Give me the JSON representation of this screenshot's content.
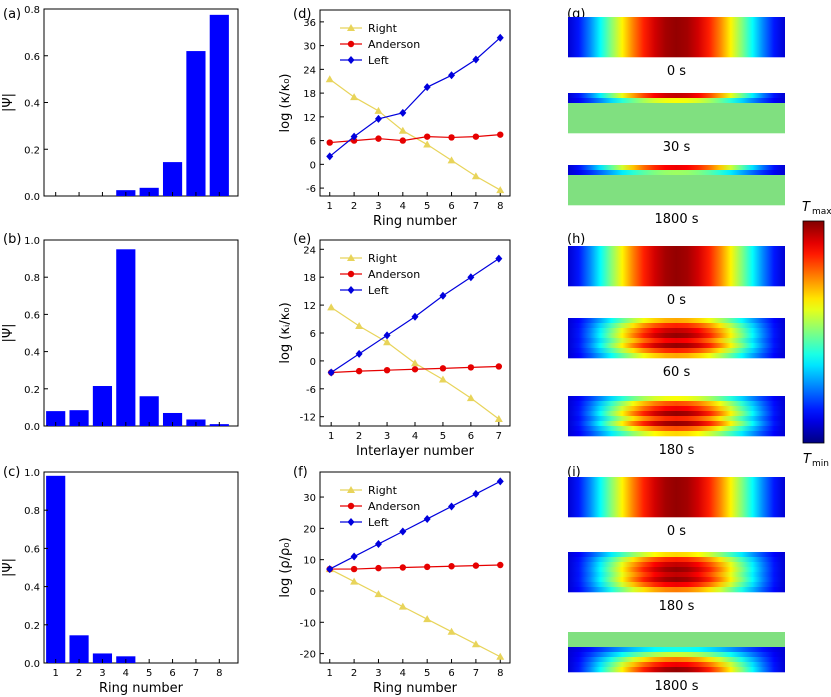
{
  "colors": {
    "bar": "#0000ff",
    "right": "#e8d45a",
    "anderson": "#e60000",
    "left": "#0000dd",
    "uniform": "#80e080"
  },
  "chart_data": [
    {
      "id": "a",
      "panel_label": "(a)",
      "type": "bar",
      "categories": [
        "1",
        "2",
        "3",
        "4",
        "5",
        "6",
        "7",
        "8"
      ],
      "values": [
        0,
        0,
        0,
        0.025,
        0.035,
        0.145,
        0.62,
        0.775
      ],
      "ylabel": "|Ψ|",
      "xlabel": "",
      "ylim": [
        0,
        0.8
      ],
      "yticks": [
        "0.0",
        "0.2",
        "0.4",
        "0.6",
        "0.8"
      ],
      "show_xticks": false
    },
    {
      "id": "b",
      "panel_label": "(b)",
      "type": "bar",
      "categories": [
        "1",
        "2",
        "3",
        "4",
        "5",
        "6",
        "7",
        "8"
      ],
      "values": [
        0.08,
        0.085,
        0.215,
        0.95,
        0.16,
        0.07,
        0.035,
        0.01
      ],
      "ylabel": "|Ψ|",
      "xlabel": "",
      "ylim": [
        0,
        1.0
      ],
      "yticks": [
        "0.0",
        "0.2",
        "0.4",
        "0.6",
        "0.8",
        "1.0"
      ],
      "show_xticks": false
    },
    {
      "id": "c",
      "panel_label": "(c)",
      "type": "bar",
      "categories": [
        "1",
        "2",
        "3",
        "4",
        "5",
        "6",
        "7",
        "8"
      ],
      "values": [
        0.98,
        0.145,
        0.05,
        0.035,
        0,
        0,
        0,
        0
      ],
      "ylabel": "|Ψ|",
      "xlabel": "Ring number",
      "ylim": [
        0,
        1.0
      ],
      "yticks": [
        "0.0",
        "0.2",
        "0.4",
        "0.6",
        "0.8",
        "1.0"
      ],
      "show_xticks": true
    },
    {
      "id": "d",
      "panel_label": "(d)",
      "type": "line",
      "x": [
        1,
        2,
        3,
        4,
        5,
        6,
        7,
        8
      ],
      "xlim": [
        0.6,
        8.4
      ],
      "ylim": [
        -8,
        39
      ],
      "yticks": [
        "-6",
        "0",
        "6",
        "12",
        "18",
        "24",
        "30",
        "36"
      ],
      "xticks": [
        "1",
        "2",
        "3",
        "4",
        "5",
        "6",
        "7",
        "8"
      ],
      "ylabel": "log (κ/κ₀)",
      "xlabel": "Ring number",
      "show_xticks": true,
      "series": [
        {
          "name": "Right",
          "marker": "triangle",
          "values": [
            21.5,
            17,
            13.5,
            8.5,
            5,
            1,
            -3,
            -6.5
          ]
        },
        {
          "name": "Anderson",
          "marker": "circle",
          "values": [
            5.5,
            6,
            6.5,
            6,
            7,
            6.8,
            7,
            7.5
          ]
        },
        {
          "name": "Left",
          "marker": "diamond",
          "values": [
            2,
            7,
            11.5,
            13,
            19.5,
            22.5,
            26.5,
            32
          ]
        }
      ]
    },
    {
      "id": "e",
      "panel_label": "(e)",
      "type": "line",
      "x": [
        1,
        2,
        3,
        4,
        5,
        6,
        7
      ],
      "xlim": [
        0.6,
        7.4
      ],
      "ylim": [
        -14,
        26
      ],
      "yticks": [
        "-12",
        "-6",
        "0",
        "6",
        "12",
        "18",
        "24"
      ],
      "xticks": [
        "1",
        "2",
        "3",
        "4",
        "5",
        "6",
        "7"
      ],
      "ylabel": "log (κᵢ/κ₀)",
      "xlabel": "Interlayer number",
      "show_xticks": true,
      "series": [
        {
          "name": "Right",
          "marker": "triangle",
          "values": [
            11.5,
            7.5,
            4,
            -0.5,
            -4,
            -8,
            -12.5
          ]
        },
        {
          "name": "Anderson",
          "marker": "circle",
          "values": [
            -2.5,
            -2.2,
            -2,
            -1.8,
            -1.6,
            -1.4,
            -1.2
          ]
        },
        {
          "name": "Left",
          "marker": "diamond",
          "values": [
            -2.5,
            1.5,
            5.5,
            9.5,
            14,
            18,
            22
          ]
        }
      ]
    },
    {
      "id": "f",
      "panel_label": "(f)",
      "type": "line",
      "x": [
        1,
        2,
        3,
        4,
        5,
        6,
        7,
        8
      ],
      "xlim": [
        0.6,
        8.4
      ],
      "ylim": [
        -23,
        38
      ],
      "yticks": [
        "-20",
        "-10",
        "0",
        "10",
        "20",
        "30"
      ],
      "xticks": [
        "1",
        "2",
        "3",
        "4",
        "5",
        "6",
        "7",
        "8"
      ],
      "ylabel": "log (ρ/ρ₀)",
      "xlabel": "Ring number",
      "show_xticks": true,
      "series": [
        {
          "name": "Right",
          "marker": "triangle",
          "values": [
            7,
            3,
            -1,
            -5,
            -9,
            -13,
            -17,
            -21
          ]
        },
        {
          "name": "Anderson",
          "marker": "circle",
          "values": [
            7,
            7,
            7.3,
            7.5,
            7.7,
            7.9,
            8.1,
            8.3
          ]
        },
        {
          "name": "Left",
          "marker": "diamond",
          "values": [
            7,
            11,
            15,
            19,
            23,
            27,
            31,
            35
          ]
        }
      ]
    }
  ],
  "heatmaps": [
    {
      "panel_label": "(g)",
      "items": [
        {
          "time": "0 s",
          "stripes": [
            1,
            1,
            1,
            1,
            1,
            1,
            1,
            1
          ]
        },
        {
          "time": "30 s",
          "stripes": [
            0.95,
            0.6,
            0,
            0,
            0,
            0,
            0,
            0
          ]
        },
        {
          "time": "1800 s",
          "stripes": [
            0.9,
            0.5,
            0,
            0,
            0,
            0,
            0,
            0
          ]
        }
      ]
    },
    {
      "panel_label": "(h)",
      "items": [
        {
          "time": "0 s",
          "stripes": [
            1,
            1,
            1,
            1,
            1,
            1,
            1,
            1
          ]
        },
        {
          "time": "60 s",
          "stripes": [
            0.7,
            0.85,
            0.95,
            1.1,
            0.9,
            1.05,
            0.85,
            0.7
          ]
        },
        {
          "time": "180 s",
          "stripes": [
            0.6,
            0.8,
            0.9,
            1.15,
            0.85,
            1.0,
            0.8,
            0.65
          ]
        }
      ]
    },
    {
      "panel_label": "(i)",
      "items": [
        {
          "time": "0 s",
          "stripes": [
            1,
            1,
            1,
            1,
            1,
            1,
            1,
            1
          ]
        },
        {
          "time": "180 s",
          "stripes": [
            0.65,
            0.85,
            0.95,
            1.1,
            0.95,
            1.05,
            0.9,
            0.75
          ]
        },
        {
          "time": "1800 s",
          "stripes": [
            0,
            0,
            0,
            0.35,
            0.55,
            0.75,
            0.9,
            1.0
          ]
        }
      ]
    }
  ],
  "colorbar": {
    "max_label": "T",
    "max_sub": "max",
    "min_label": "T",
    "min_sub": "min"
  }
}
